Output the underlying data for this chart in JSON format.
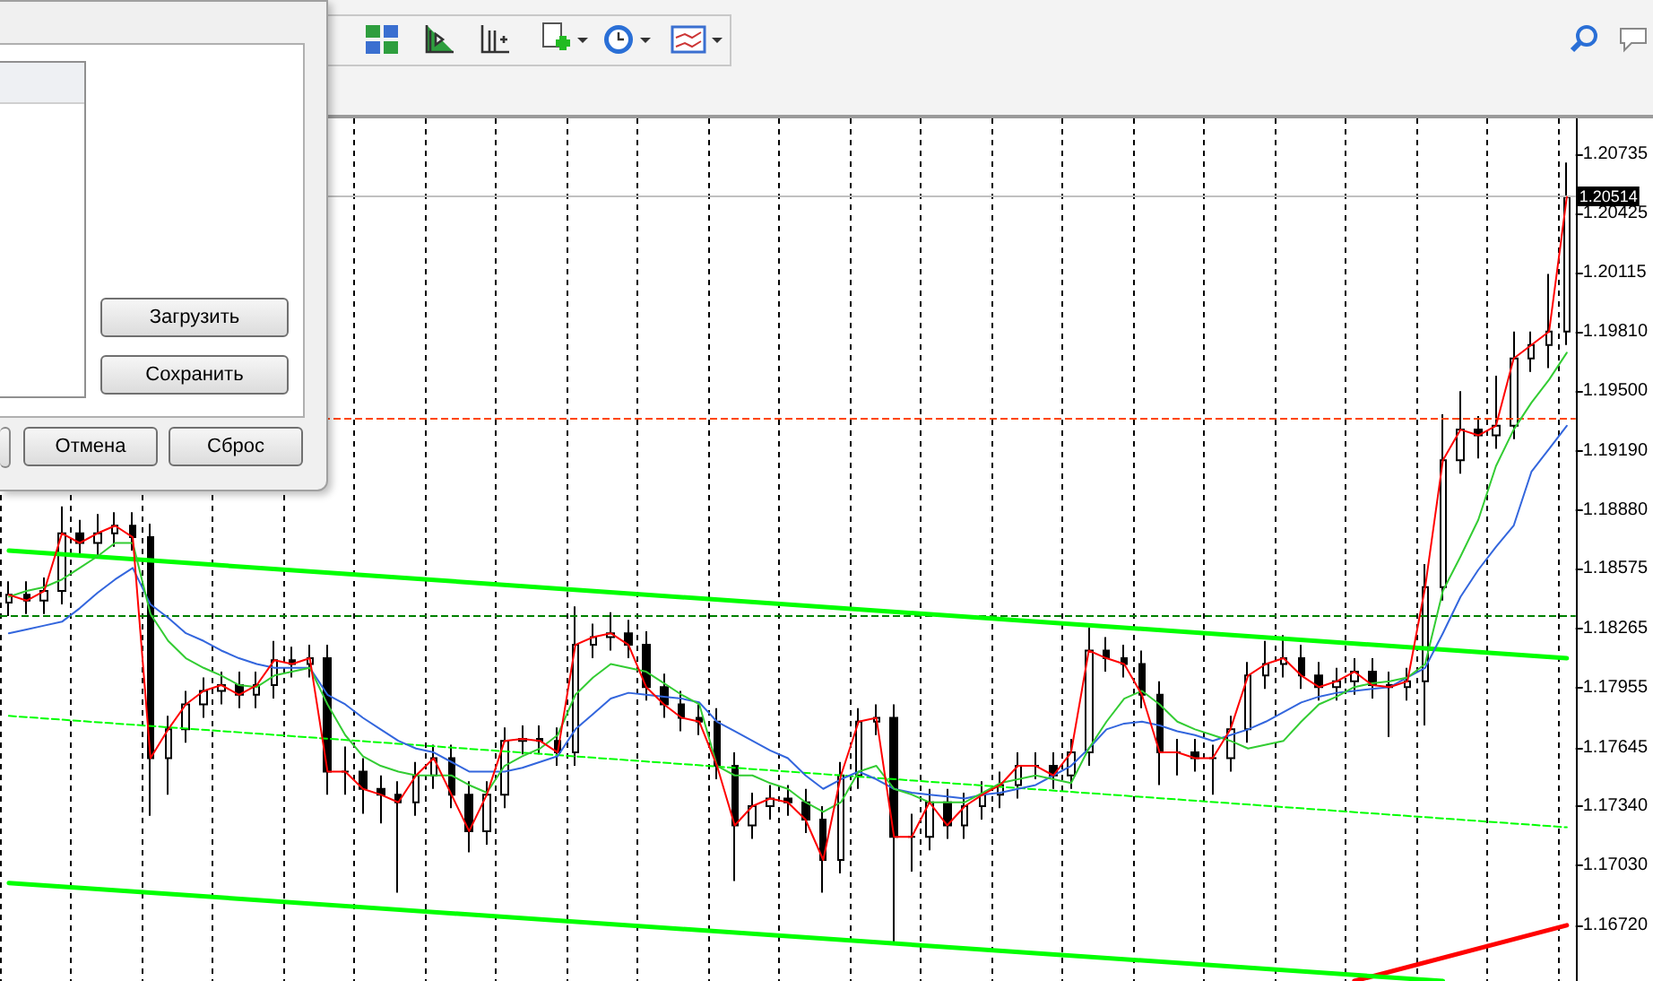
{
  "chart_data": {
    "type": "candlestick",
    "color": "#000000",
    "categories": [
      null,
      null,
      null,
      null,
      null,
      null,
      null,
      null,
      null,
      null,
      null,
      null,
      null,
      null,
      null,
      null,
      null,
      null,
      null,
      null,
      null,
      null,
      null,
      null,
      null,
      null,
      null,
      null,
      null,
      null,
      null,
      null,
      null,
      null,
      null,
      null,
      null,
      null,
      null,
      null,
      null,
      null,
      null,
      null,
      null,
      null,
      null,
      null,
      null,
      null,
      null,
      null,
      null,
      null,
      null,
      null,
      null,
      null,
      null,
      null,
      null,
      null,
      null,
      null,
      null,
      null,
      null,
      null,
      null,
      null,
      null,
      null,
      null,
      null,
      null,
      null,
      null,
      null,
      null,
      null,
      null,
      null,
      null,
      null,
      null,
      null,
      null,
      null,
      null
    ],
    "ohlc": [
      [
        1.184,
        1.1851,
        1.1833,
        1.1844
      ],
      [
        1.1844,
        1.1851,
        1.1834,
        1.1841
      ],
      [
        1.1841,
        1.1853,
        1.1834,
        1.1846
      ],
      [
        1.1846,
        1.189,
        1.1839,
        1.1876
      ],
      [
        1.1876,
        1.1883,
        1.1864,
        1.1871
      ],
      [
        1.1871,
        1.1886,
        1.1864,
        1.1876
      ],
      [
        1.1876,
        1.1887,
        1.1869,
        1.188
      ],
      [
        1.188,
        1.1887,
        1.1867,
        1.1874
      ],
      [
        1.1874,
        1.1881,
        1.1729,
        1.1759
      ],
      [
        1.1759,
        1.1781,
        1.174,
        1.1774
      ],
      [
        1.1774,
        1.1794,
        1.1767,
        1.1787
      ],
      [
        1.1787,
        1.1801,
        1.178,
        1.1794
      ],
      [
        1.1794,
        1.1804,
        1.1787,
        1.1797
      ],
      [
        1.1797,
        1.1804,
        1.1785,
        1.1792
      ],
      [
        1.1792,
        1.1804,
        1.1785,
        1.1797
      ],
      [
        1.1797,
        1.182,
        1.179,
        1.181
      ],
      [
        1.181,
        1.1817,
        1.1801,
        1.1808
      ],
      [
        1.1808,
        1.1818,
        1.1801,
        1.1811
      ],
      [
        1.1811,
        1.1818,
        1.174,
        1.1752
      ],
      [
        1.1752,
        1.1765,
        1.174,
        1.1752
      ],
      [
        1.1752,
        1.1759,
        1.173,
        1.1743
      ],
      [
        1.1743,
        1.175,
        1.1725,
        1.174
      ],
      [
        1.174,
        1.1747,
        1.1689,
        1.1736
      ],
      [
        1.1736,
        1.1757,
        1.1729,
        1.175
      ],
      [
        1.175,
        1.1766,
        1.1743,
        1.1759
      ],
      [
        1.1759,
        1.1766,
        1.1733,
        1.174
      ],
      [
        1.174,
        1.1747,
        1.171,
        1.1721
      ],
      [
        1.1721,
        1.1747,
        1.1714,
        1.174
      ],
      [
        1.174,
        1.1775,
        1.1733,
        1.1768
      ],
      [
        1.1768,
        1.1776,
        1.1761,
        1.1769
      ],
      [
        1.1769,
        1.1776,
        1.1761,
        1.1768
      ],
      [
        1.1768,
        1.1775,
        1.1755,
        1.1762
      ],
      [
        1.1762,
        1.1838,
        1.1755,
        1.1818
      ],
      [
        1.1818,
        1.1829,
        1.1811,
        1.1822
      ],
      [
        1.1822,
        1.1835,
        1.1815,
        1.1824
      ],
      [
        1.1824,
        1.1831,
        1.1811,
        1.1818
      ],
      [
        1.1818,
        1.1825,
        1.1789,
        1.1796
      ],
      [
        1.1796,
        1.1803,
        1.178,
        1.1787
      ],
      [
        1.1787,
        1.1794,
        1.1773,
        1.178
      ],
      [
        1.178,
        1.1787,
        1.1771,
        1.1778
      ],
      [
        1.1778,
        1.1785,
        1.1748,
        1.1755
      ],
      [
        1.1755,
        1.1762,
        1.1695,
        1.1724
      ],
      [
        1.1724,
        1.1741,
        1.1717,
        1.1734
      ],
      [
        1.1734,
        1.1745,
        1.1727,
        1.1738
      ],
      [
        1.1738,
        1.1745,
        1.1729,
        1.1736
      ],
      [
        1.1736,
        1.1743,
        1.172,
        1.1727
      ],
      [
        1.1727,
        1.1734,
        1.1689,
        1.1706
      ],
      [
        1.1706,
        1.1757,
        1.1699,
        1.175
      ],
      [
        1.175,
        1.1785,
        1.1743,
        1.1778
      ],
      [
        1.1778,
        1.1787,
        1.1771,
        1.178
      ],
      [
        1.178,
        1.1787,
        1.1663,
        1.1718
      ],
      [
        1.1718,
        1.173,
        1.17,
        1.1718
      ],
      [
        1.1718,
        1.1743,
        1.1711,
        1.1736
      ],
      [
        1.1736,
        1.1743,
        1.1717,
        1.1724
      ],
      [
        1.1724,
        1.1741,
        1.1717,
        1.1734
      ],
      [
        1.1734,
        1.1747,
        1.1727,
        1.174
      ],
      [
        1.174,
        1.1752,
        1.1733,
        1.1745
      ],
      [
        1.1745,
        1.1762,
        1.1738,
        1.1755
      ],
      [
        1.1755,
        1.1762,
        1.1748,
        1.1755
      ],
      [
        1.1755,
        1.1762,
        1.1743,
        1.175
      ],
      [
        1.175,
        1.1769,
        1.1743,
        1.1762
      ],
      [
        1.1762,
        1.1827,
        1.1755,
        1.1815
      ],
      [
        1.1815,
        1.1822,
        1.1804,
        1.1811
      ],
      [
        1.1811,
        1.1818,
        1.1801,
        1.1808
      ],
      [
        1.1808,
        1.1815,
        1.1785,
        1.1792
      ],
      [
        1.1792,
        1.1799,
        1.1745,
        1.1762
      ],
      [
        1.1762,
        1.1769,
        1.175,
        1.1762
      ],
      [
        1.1762,
        1.1769,
        1.1752,
        1.1759
      ],
      [
        1.1759,
        1.1766,
        1.174,
        1.1759
      ],
      [
        1.1759,
        1.1781,
        1.1752,
        1.1774
      ],
      [
        1.1774,
        1.1809,
        1.1767,
        1.1802
      ],
      [
        1.1802,
        1.182,
        1.1795,
        1.1808
      ],
      [
        1.1808,
        1.1823,
        1.1801,
        1.1811
      ],
      [
        1.1811,
        1.1818,
        1.1795,
        1.1802
      ],
      [
        1.1802,
        1.1809,
        1.1789,
        1.1796
      ],
      [
        1.1796,
        1.1806,
        1.1789,
        1.1799
      ],
      [
        1.1799,
        1.1811,
        1.1792,
        1.1804
      ],
      [
        1.1804,
        1.1811,
        1.179,
        1.1797
      ],
      [
        1.1797,
        1.1804,
        1.177,
        1.1796
      ],
      [
        1.1796,
        1.1806,
        1.1789,
        1.1799
      ],
      [
        1.1799,
        1.186,
        1.1776,
        1.1848
      ],
      [
        1.1848,
        1.1938,
        1.1841,
        1.1914
      ],
      [
        1.1914,
        1.195,
        1.1907,
        1.193
      ],
      [
        1.193,
        1.1937,
        1.1915,
        1.1927
      ],
      [
        1.1927,
        1.1958,
        1.192,
        1.1932
      ],
      [
        1.1932,
        1.1981,
        1.1925,
        1.1967
      ],
      [
        1.1967,
        1.1981,
        1.196,
        1.1974
      ],
      [
        1.1974,
        1.2011,
        1.1962,
        1.1981
      ],
      [
        1.1981,
        1.2069,
        1.1974,
        1.2051
      ]
    ],
    "series": [
      {
        "type": "line",
        "color": "#ff0000",
        "values": [
          1.1844,
          1.1841,
          1.1846,
          1.1876,
          1.1871,
          1.1876,
          1.188,
          1.1874,
          1.1759,
          1.1774,
          1.1787,
          1.1794,
          1.1797,
          1.1792,
          1.1797,
          1.181,
          1.1808,
          1.1811,
          1.1752,
          1.1752,
          1.1743,
          1.174,
          1.1736,
          1.175,
          1.1759,
          1.174,
          1.1721,
          1.174,
          1.1768,
          1.1769,
          1.1768,
          1.1762,
          1.1818,
          1.1822,
          1.1824,
          1.1818,
          1.1796,
          1.1787,
          1.178,
          1.1778,
          1.1755,
          1.1724,
          1.1734,
          1.1738,
          1.1736,
          1.1727,
          1.1706,
          1.175,
          1.1778,
          1.178,
          1.1718,
          1.1718,
          1.1736,
          1.1724,
          1.1734,
          1.174,
          1.1745,
          1.1755,
          1.1755,
          1.175,
          1.1762,
          1.1815,
          1.1811,
          1.1808,
          1.1792,
          1.1762,
          1.1762,
          1.1759,
          1.1759,
          1.1774,
          1.1802,
          1.1808,
          1.1811,
          1.1802,
          1.1796,
          1.1799,
          1.1804,
          1.1797,
          1.1796,
          1.1799,
          1.1848,
          1.1914,
          1.193,
          1.1927,
          1.1932,
          1.1967,
          1.1974,
          1.1981,
          1.2051
        ]
      },
      {
        "type": "line",
        "color": "#33cc33",
        "values": [
          1.1843,
          1.1846,
          1.1848,
          1.1852,
          1.1858,
          1.1864,
          1.1871,
          1.1871,
          1.1834,
          1.182,
          1.1811,
          1.1806,
          1.1802,
          1.1797,
          1.1796,
          1.1802,
          1.1804,
          1.1806,
          1.1787,
          1.1771,
          1.176,
          1.1755,
          1.1752,
          1.175,
          1.175,
          1.175,
          1.1745,
          1.1741,
          1.1755,
          1.176,
          1.1764,
          1.1771,
          1.1792,
          1.1801,
          1.1808,
          1.1806,
          1.1804,
          1.1798,
          1.1792,
          1.1787,
          1.1755,
          1.175,
          1.175,
          1.1746,
          1.1743,
          1.1736,
          1.1731,
          1.1736,
          1.1752,
          1.1755,
          1.1743,
          1.174,
          1.1736,
          1.1736,
          1.1736,
          1.1741,
          1.1746,
          1.1748,
          1.175,
          1.1748,
          1.1746,
          1.1764,
          1.1778,
          1.179,
          1.1794,
          1.1787,
          1.1778,
          1.1774,
          1.1771,
          1.1768,
          1.1764,
          1.1766,
          1.1768,
          1.1778,
          1.1787,
          1.1791,
          1.1796,
          1.1798,
          1.1799,
          1.1801,
          1.1808,
          1.1846,
          1.1864,
          1.1883,
          1.1911,
          1.193,
          1.1944,
          1.1956,
          1.197
        ]
      },
      {
        "type": "line",
        "color": "#3366dd",
        "values": [
          1.1824,
          1.1826,
          1.1828,
          1.183,
          1.1837,
          1.1845,
          1.1852,
          1.1858,
          1.1839,
          1.1832,
          1.1824,
          1.182,
          1.1815,
          1.1811,
          1.1808,
          1.1806,
          1.1806,
          1.1806,
          1.1792,
          1.1787,
          1.178,
          1.1774,
          1.1768,
          1.1764,
          1.1762,
          1.1757,
          1.1752,
          1.1752,
          1.1752,
          1.1754,
          1.1757,
          1.176,
          1.1774,
          1.1782,
          1.179,
          1.1793,
          1.1792,
          1.1791,
          1.179,
          1.1788,
          1.1778,
          1.1773,
          1.1768,
          1.1763,
          1.1759,
          1.175,
          1.1743,
          1.1748,
          1.1752,
          1.1748,
          1.1743,
          1.1741,
          1.174,
          1.1739,
          1.1738,
          1.174,
          1.1741,
          1.1743,
          1.1745,
          1.175,
          1.1755,
          1.1764,
          1.1774,
          1.1777,
          1.1778,
          1.1776,
          1.1773,
          1.1771,
          1.1768,
          1.1771,
          1.1774,
          1.1778,
          1.1783,
          1.1788,
          1.1791,
          1.1793,
          1.1794,
          1.1795,
          1.1796,
          1.1801,
          1.1806,
          1.1824,
          1.1843,
          1.1857,
          1.1869,
          1.188,
          1.1908,
          1.192,
          1.1932
        ]
      },
      {
        "type": "line",
        "color": "#00ff00",
        "values": [
          1.1867,
          null,
          null,
          null,
          null,
          null,
          null,
          null,
          null,
          null,
          null,
          null,
          null,
          null,
          null,
          null,
          null,
          null,
          null,
          null,
          null,
          null,
          null,
          null,
          null,
          null,
          null,
          null,
          null,
          null,
          null,
          null,
          null,
          null,
          null,
          null,
          null,
          null,
          null,
          null,
          null,
          null,
          null,
          null,
          null,
          null,
          null,
          null,
          null,
          null,
          null,
          null,
          null,
          null,
          null,
          null,
          null,
          null,
          null,
          null,
          null,
          null,
          null,
          null,
          null,
          null,
          null,
          null,
          null,
          null,
          null,
          null,
          null,
          null,
          null,
          null,
          null,
          null,
          null,
          null,
          null,
          null,
          null,
          null,
          null,
          null,
          null,
          null,
          1.1811
        ]
      },
      {
        "type": "line",
        "color": "#00ff00",
        "line_style": "dashed",
        "values": [
          1.1781,
          null,
          null,
          null,
          null,
          null,
          null,
          null,
          null,
          null,
          null,
          null,
          null,
          null,
          null,
          null,
          null,
          null,
          null,
          null,
          null,
          null,
          null,
          null,
          null,
          null,
          null,
          null,
          null,
          null,
          null,
          null,
          null,
          null,
          null,
          null,
          null,
          null,
          null,
          null,
          null,
          null,
          null,
          null,
          null,
          null,
          null,
          null,
          null,
          null,
          null,
          null,
          null,
          null,
          null,
          null,
          null,
          null,
          null,
          null,
          null,
          null,
          null,
          null,
          null,
          null,
          null,
          null,
          null,
          null,
          null,
          null,
          null,
          null,
          null,
          null,
          null,
          null,
          null,
          null,
          null,
          null,
          null,
          null,
          null,
          null,
          null,
          null,
          1.1723
        ]
      },
      {
        "type": "line",
        "color": "#00ff00",
        "values": [
          1.1694,
          null,
          null,
          null,
          null,
          null,
          null,
          null,
          null,
          null,
          null,
          null,
          null,
          null,
          null,
          null,
          null,
          null,
          null,
          null,
          null,
          null,
          null,
          null,
          null,
          null,
          null,
          null,
          null,
          null,
          null,
          null,
          null,
          null,
          null,
          null,
          null,
          null,
          null,
          null,
          null,
          null,
          null,
          null,
          null,
          null,
          null,
          null,
          null,
          null,
          null,
          null,
          null,
          null,
          null,
          null,
          null,
          null,
          null,
          null,
          null,
          null,
          null,
          null,
          null,
          null,
          null,
          null,
          null,
          null,
          null,
          null,
          null,
          null,
          null,
          null,
          null,
          null,
          null,
          null,
          null,
          1.1643,
          null,
          null,
          null,
          null,
          null,
          null,
          null
        ]
      },
      {
        "type": "line",
        "color": "#ff0000",
        "values": [
          null,
          null,
          null,
          null,
          null,
          null,
          null,
          null,
          null,
          null,
          null,
          null,
          null,
          null,
          null,
          null,
          null,
          null,
          null,
          null,
          null,
          null,
          null,
          null,
          null,
          null,
          null,
          null,
          null,
          null,
          null,
          null,
          null,
          null,
          null,
          null,
          null,
          null,
          null,
          null,
          null,
          null,
          null,
          null,
          null,
          null,
          null,
          null,
          null,
          null,
          null,
          null,
          null,
          null,
          null,
          null,
          null,
          null,
          null,
          null,
          null,
          null,
          null,
          null,
          null,
          null,
          null,
          null,
          null,
          null,
          null,
          null,
          null,
          null,
          null,
          null,
          1.1643,
          null,
          null,
          null,
          null,
          null,
          null,
          null,
          null,
          null,
          null,
          null,
          1.1672
        ]
      }
    ],
    "ylim": [
      1.1643,
      1.2092
    ],
    "yticks": [
      {
        "value": 1.20735,
        "label": "1.20735"
      },
      {
        "value": 1.20425,
        "label": "1.20425"
      },
      {
        "value": 1.20115,
        "label": "1.20115"
      },
      {
        "value": 1.1981,
        "label": "1.19810"
      },
      {
        "value": 1.195,
        "label": "1.19500"
      },
      {
        "value": 1.1919,
        "label": "1.19190"
      },
      {
        "value": 1.1888,
        "label": "1.18880"
      },
      {
        "value": 1.18575,
        "label": "1.18575"
      },
      {
        "value": 1.18265,
        "label": "1.18265"
      },
      {
        "value": 1.17955,
        "label": "1.17955"
      },
      {
        "value": 1.17645,
        "label": "1.17645"
      },
      {
        "value": 1.1734,
        "label": "1.17340"
      },
      {
        "value": 1.1703,
        "label": "1.17030"
      },
      {
        "value": 1.1672,
        "label": "1.16720"
      }
    ],
    "tick_labels": "y",
    "grid": "x",
    "marker": "none",
    "line_style": "solid",
    "ref_lines": [
      {
        "axis": "y",
        "value": 1.1833,
        "color": "#008000",
        "line_style": "dashed"
      },
      {
        "axis": "y",
        "value": 1.1936,
        "color": "#ff4500",
        "line_style": "dashed"
      },
      {
        "axis": "y",
        "value": 1.20514,
        "label": "1.20514",
        "color": "#c0c0c0",
        "line_style": "solid"
      }
    ],
    "annotations": [
      "Загрузить",
      "Сохранить",
      "Отмена",
      "Сброс"
    ]
  }
}
